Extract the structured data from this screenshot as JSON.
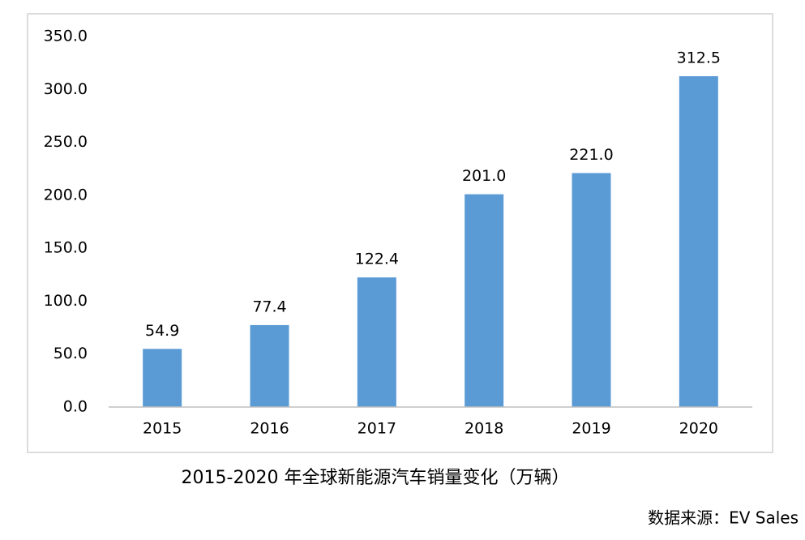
{
  "chart_data": {
    "type": "bar",
    "title": "2015-2020 年全球新能源汽车销量变化（万辆）",
    "source": "数据来源：EV Sales",
    "categories": [
      "2015",
      "2016",
      "2017",
      "2018",
      "2019",
      "2020"
    ],
    "values": [
      54.9,
      77.4,
      122.4,
      201.0,
      221.0,
      312.5
    ],
    "value_labels": [
      "54.9",
      "77.4",
      "122.4",
      "201.0",
      "221.0",
      "312.5"
    ],
    "color": "#5b9bd5",
    "ylim": [
      0,
      350
    ],
    "yticks": [
      {
        "value": 0,
        "label": "0.0"
      },
      {
        "value": 50,
        "label": "50.0"
      },
      {
        "value": 100,
        "label": "100.0"
      },
      {
        "value": 150,
        "label": "150.0"
      },
      {
        "value": 200,
        "label": "200.0"
      },
      {
        "value": 250,
        "label": "250.0"
      },
      {
        "value": 300,
        "label": "300.0"
      },
      {
        "value": 350,
        "label": "350.0"
      }
    ],
    "grid": false
  }
}
